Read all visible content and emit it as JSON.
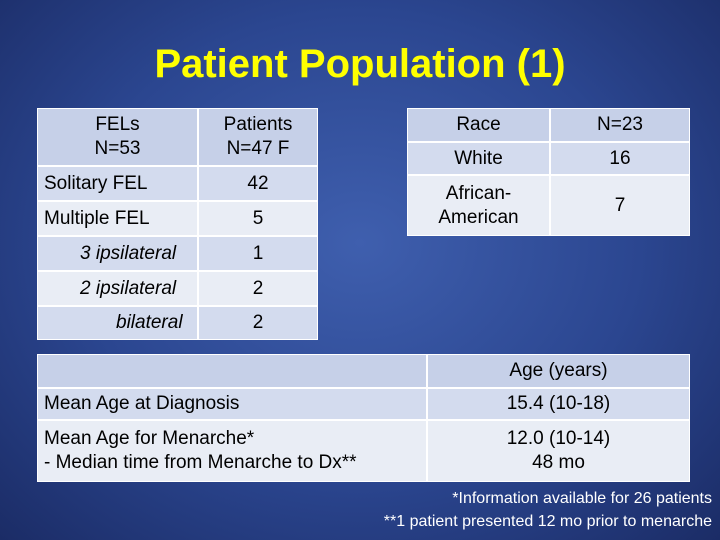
{
  "title": "Patient Population (1)",
  "table1": {
    "header": [
      "FELs\nN=53",
      "Patients\nN=47 F"
    ],
    "rows": [
      [
        "Solitary FEL",
        "42"
      ],
      [
        "Multiple FEL",
        "5"
      ],
      [
        "3 ipsilateral",
        "1"
      ],
      [
        "2 ipsilateral",
        "2"
      ],
      [
        "bilateral",
        "2"
      ]
    ]
  },
  "table2": {
    "header": [
      "Race",
      "N=23"
    ],
    "rows": [
      [
        "White",
        "16"
      ],
      [
        "African-\nAmerican",
        "7"
      ]
    ]
  },
  "table3": {
    "header": [
      "Age (years)"
    ],
    "rows": [
      [
        "Mean Age at Diagnosis",
        "15.4 (10-18)"
      ],
      [
        "Mean Age for Menarche*\n- Median time from Menarche to Dx**",
        "12.0 (10-14)\n48 mo"
      ]
    ]
  },
  "footnotes": [
    "*Information available for 26 patients",
    "**1 patient presented 12 mo prior to menarche"
  ]
}
